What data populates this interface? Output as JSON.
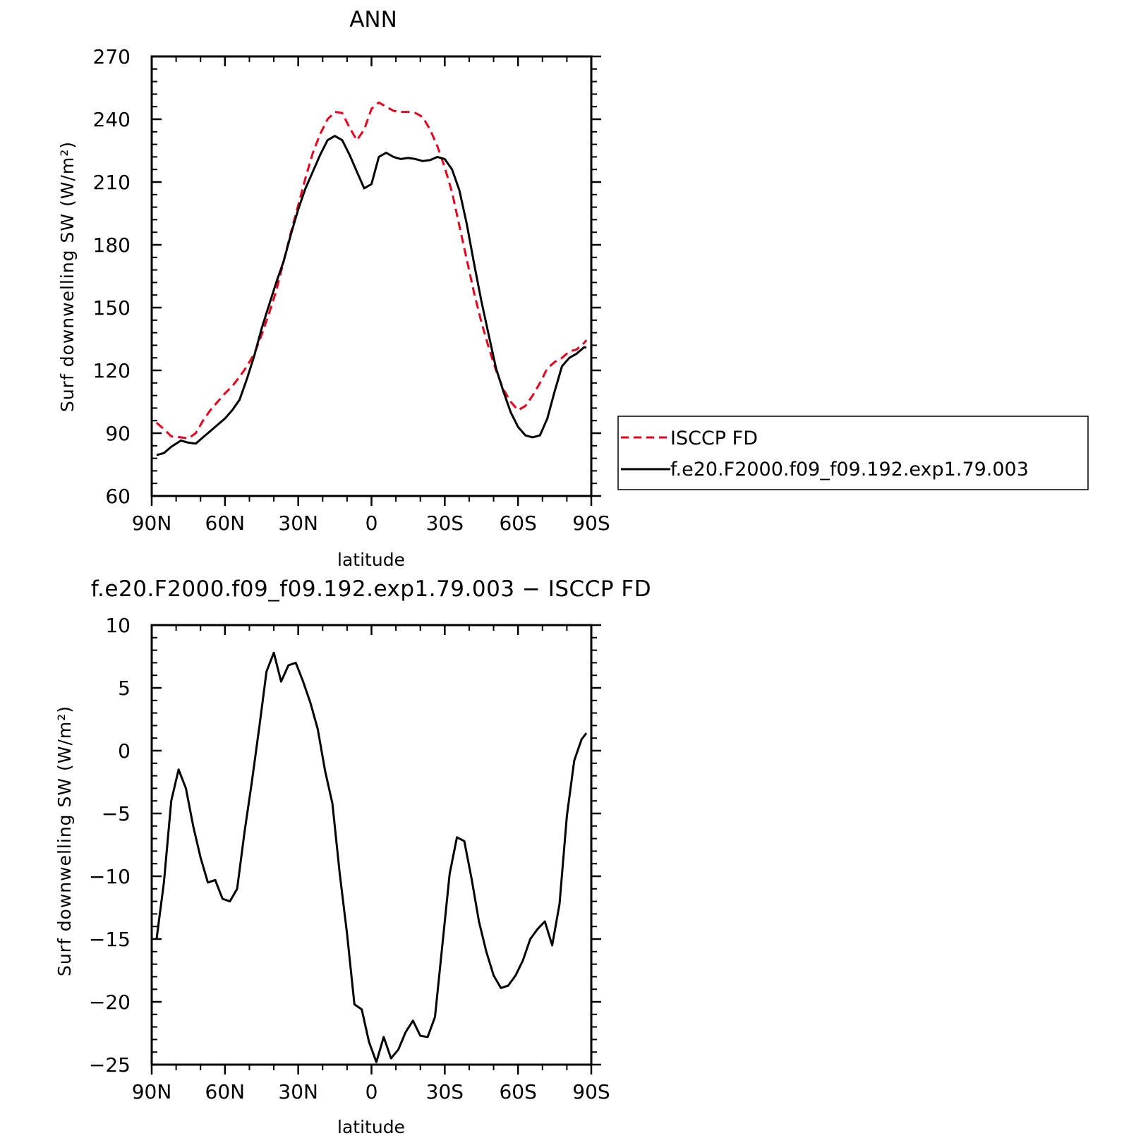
{
  "chart_data": [
    {
      "type": "line",
      "title": "ANN",
      "xlabel": "latitude",
      "ylabel": "Surf downwelling SW (W/m²)",
      "xlim": [
        -90,
        90
      ],
      "ylim": [
        60,
        270
      ],
      "x_direction": "north-to-south",
      "x_ticks": [
        -90,
        -60,
        -30,
        0,
        30,
        60,
        90
      ],
      "x_tick_labels": [
        "90N",
        "60N",
        "30N",
        "0",
        "30S",
        "60S",
        "90S"
      ],
      "y_ticks": [
        60,
        90,
        120,
        150,
        180,
        210,
        240,
        270
      ],
      "y_tick_labels": [
        "60",
        "90",
        "120",
        "150",
        "180",
        "210",
        "240",
        "270"
      ],
      "legend_position": "right",
      "series": [
        {
          "name": "ISCCP FD",
          "color": "#e8001c",
          "dash": "dashed",
          "x": [
            -88,
            -85,
            -82,
            -78,
            -75,
            -72,
            -69,
            -66,
            -63,
            -60,
            -57,
            -54,
            -51,
            -48,
            -45,
            -42,
            -39,
            -36,
            -33,
            -30,
            -27,
            -24,
            -21,
            -18,
            -15,
            -12,
            -9,
            -6,
            -3,
            0,
            3,
            6,
            9,
            12,
            15,
            18,
            21,
            24,
            27,
            30,
            33,
            36,
            39,
            42,
            45,
            48,
            51,
            54,
            57,
            60,
            63,
            66,
            69,
            72,
            75,
            78,
            81,
            84,
            87,
            88
          ],
          "values": [
            95,
            92,
            88.5,
            88,
            87.5,
            90,
            96,
            101,
            105,
            109,
            112.5,
            117,
            122,
            128,
            137,
            147,
            158,
            172,
            186,
            199,
            212,
            224,
            233,
            240,
            243.5,
            243,
            236,
            230,
            235,
            245,
            248,
            246,
            244,
            243.5,
            243.5,
            243,
            241,
            235,
            227,
            217,
            205,
            189,
            173,
            157,
            143,
            131,
            120,
            111,
            105,
            101,
            103,
            108,
            114,
            121,
            124,
            126,
            129,
            130,
            133,
            134.5
          ]
        },
        {
          "name": "f.e20.F2000.f09_f09.192.exp1.79.003",
          "color": "#000000",
          "dash": "solid",
          "x": [
            -88,
            -85,
            -82,
            -78,
            -75,
            -72,
            -69,
            -66,
            -63,
            -60,
            -57,
            -54,
            -51,
            -48,
            -45,
            -42,
            -39,
            -36,
            -33,
            -30,
            -27,
            -24,
            -21,
            -18,
            -15,
            -12,
            -9,
            -6,
            -3,
            0,
            3,
            6,
            9,
            12,
            15,
            18,
            21,
            24,
            27,
            30,
            33,
            36,
            39,
            42,
            45,
            48,
            51,
            54,
            57,
            60,
            63,
            66,
            69,
            72,
            75,
            78,
            81,
            84,
            87,
            88
          ],
          "values": [
            79.5,
            80.5,
            83.5,
            86.5,
            85.5,
            85,
            88,
            91,
            94,
            97,
            101,
            106,
            116,
            127,
            140,
            151,
            162,
            172,
            185,
            197,
            207,
            215,
            223,
            230,
            232,
            230,
            223,
            215,
            207,
            209,
            222,
            224,
            222,
            221,
            221.5,
            221,
            220,
            220.5,
            222,
            221,
            216,
            206,
            190,
            171,
            153,
            137,
            121,
            110,
            100,
            93,
            89,
            88,
            89,
            97,
            110,
            122,
            126,
            128,
            131,
            131
          ]
        }
      ]
    },
    {
      "type": "line",
      "title": "f.e20.F2000.f09_f09.192.exp1.79.003 − ISCCP FD",
      "xlabel": "latitude",
      "ylabel": "Surf downwelling SW (W/m²)",
      "xlim": [
        -90,
        90
      ],
      "ylim": [
        -25,
        10
      ],
      "x_direction": "north-to-south",
      "x_ticks": [
        -90,
        -60,
        -30,
        0,
        30,
        60,
        90
      ],
      "x_tick_labels": [
        "90N",
        "60N",
        "30N",
        "0",
        "30S",
        "60S",
        "90S"
      ],
      "y_ticks": [
        -25,
        -20,
        -15,
        -10,
        -5,
        0,
        5,
        10
      ],
      "y_tick_labels": [
        "−25",
        "−20",
        "−15",
        "−10",
        "−5",
        "0",
        "5",
        "10"
      ],
      "series": [
        {
          "color": "#000000",
          "dash": "solid",
          "x": [
            -88,
            -85,
            -82,
            -79,
            -76,
            -73,
            -70,
            -67,
            -64,
            -61,
            -58,
            -55,
            -52,
            -49,
            -46,
            -43,
            -40,
            -37,
            -34,
            -31,
            -28,
            -25,
            -22,
            -19,
            -16,
            -13,
            -10,
            -7,
            -4,
            -1,
            2,
            5,
            8,
            11,
            14,
            17,
            20,
            23,
            26,
            29,
            32,
            35,
            38,
            41,
            44,
            47,
            50,
            53,
            56,
            59,
            62,
            65,
            68,
            71,
            74,
            77,
            80,
            83,
            86,
            88
          ],
          "values": [
            -15,
            -10.5,
            -4,
            -1.5,
            -3,
            -6,
            -8.5,
            -10.5,
            -10.3,
            -11.8,
            -12,
            -11,
            -6.5,
            -2.5,
            1.8,
            6.3,
            7.8,
            5.5,
            6.8,
            7,
            5.5,
            3.8,
            1.7,
            -1.6,
            -4.2,
            -9.8,
            -14.6,
            -20.2,
            -20.6,
            -23.2,
            -24.8,
            -22.8,
            -24.5,
            -23.8,
            -22.4,
            -21.5,
            -22.7,
            -22.8,
            -21.2,
            -15.5,
            -9.8,
            -6.9,
            -7.2,
            -10.2,
            -13.6,
            -16,
            -17.9,
            -18.9,
            -18.7,
            -17.9,
            -16.7,
            -15,
            -14.2,
            -13.6,
            -15.5,
            -12.2,
            -5.2,
            -0.8,
            0.9,
            1.4
          ]
        }
      ]
    }
  ]
}
